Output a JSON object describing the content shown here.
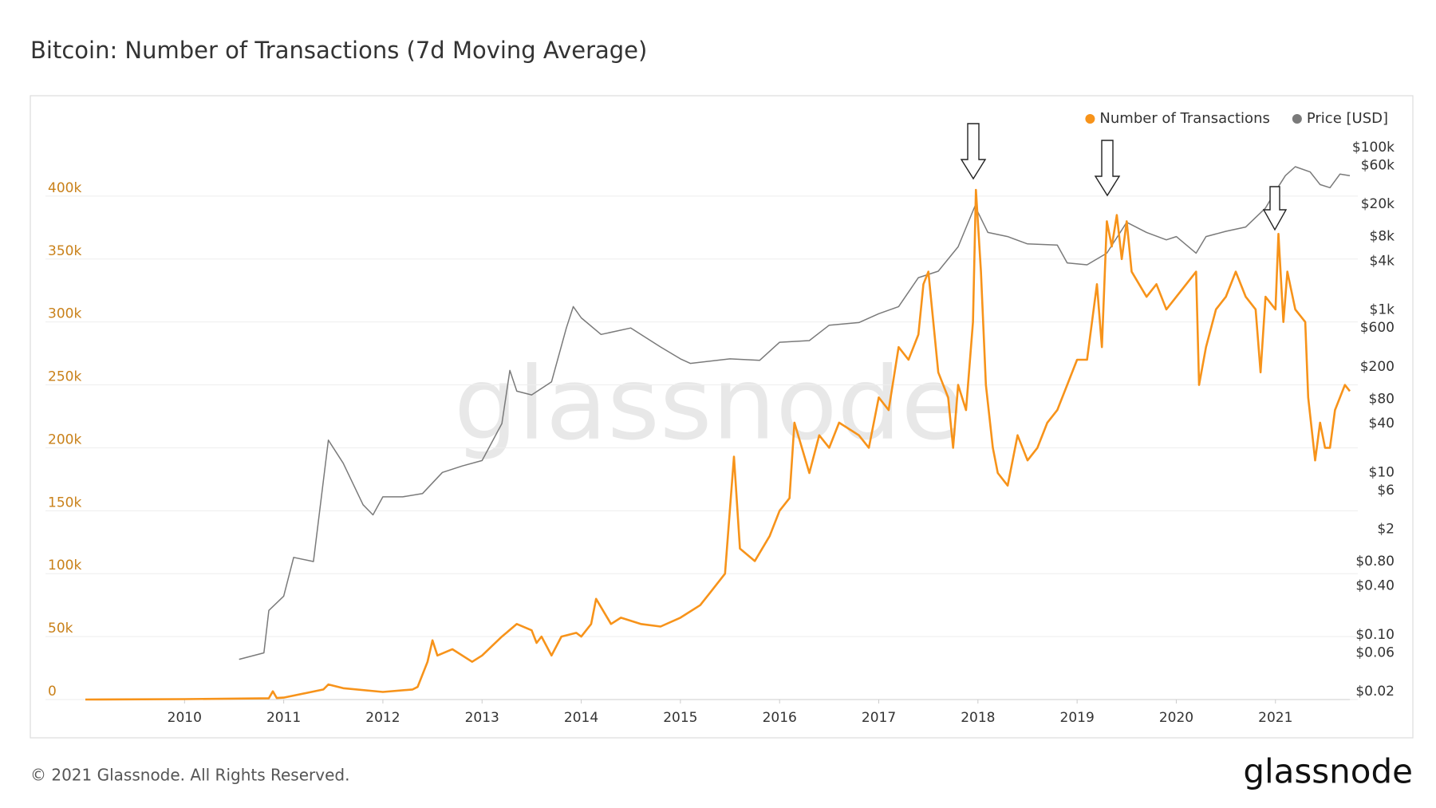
{
  "chart_data": {
    "type": "line",
    "title": "Bitcoin: Number of Transactions (7d Moving Average)",
    "watermark": "glassnode",
    "xlim": [
      2009.0,
      2021.75
    ],
    "xticks": [
      2010,
      2011,
      2012,
      2013,
      2014,
      2015,
      2016,
      2017,
      2018,
      2019,
      2020,
      2021
    ],
    "ylim": [
      0,
      450000
    ],
    "yticks": [
      0,
      {
        "value": 50000,
        "label": "50k"
      },
      {
        "value": 100000,
        "label": "100k"
      },
      {
        "value": 150000,
        "label": "150k"
      },
      {
        "value": 200000,
        "label": "200k"
      },
      {
        "value": 250000,
        "label": "250k"
      },
      {
        "value": 300000,
        "label": "300k"
      },
      {
        "value": 350000,
        "label": "350k"
      },
      {
        "value": 400000,
        "label": "400k"
      }
    ],
    "y2lim": [
      0.016,
      150000
    ],
    "y2scale": "log",
    "y2ticks": [
      {
        "value": 0.02,
        "label": "$0.02"
      },
      {
        "value": 0.06,
        "label": "$0.06"
      },
      {
        "value": 0.1,
        "label": "$0.10"
      },
      {
        "value": 0.4,
        "label": "$0.40"
      },
      {
        "value": 0.8,
        "label": "$0.80"
      },
      {
        "value": 2,
        "label": "$2"
      },
      {
        "value": 6,
        "label": "$6"
      },
      {
        "value": 10,
        "label": "$10"
      },
      {
        "value": 40,
        "label": "$40"
      },
      {
        "value": 80,
        "label": "$80"
      },
      {
        "value": 200,
        "label": "$200"
      },
      {
        "value": 600,
        "label": "$600"
      },
      {
        "value": 1000,
        "label": "$1k"
      },
      {
        "value": 4000,
        "label": "$4k"
      },
      {
        "value": 8000,
        "label": "$8k"
      },
      {
        "value": 20000,
        "label": "$20k"
      },
      {
        "value": 60000,
        "label": "$60k"
      },
      {
        "value": 100000,
        "label": "$100k"
      }
    ],
    "grid": true,
    "legend": "top-right",
    "series": [
      {
        "name": "Price [USD]",
        "color": "#7a7a7a",
        "axis": "y2",
        "x": [
          2010.55,
          2010.8,
          2010.85,
          2011.0,
          2011.1,
          2011.3,
          2011.45,
          2011.6,
          2011.8,
          2011.9,
          2012.0,
          2012.2,
          2012.4,
          2012.6,
          2012.8,
          2013.0,
          2013.2,
          2013.28,
          2013.35,
          2013.5,
          2013.7,
          2013.85,
          2013.92,
          2014.0,
          2014.2,
          2014.5,
          2014.8,
          2015.0,
          2015.1,
          2015.5,
          2015.8,
          2016.0,
          2016.3,
          2016.5,
          2016.8,
          2017.0,
          2017.2,
          2017.4,
          2017.6,
          2017.8,
          2017.97,
          2018.1,
          2018.3,
          2018.5,
          2018.8,
          2018.9,
          2019.1,
          2019.3,
          2019.5,
          2019.7,
          2019.9,
          2020.0,
          2020.2,
          2020.3,
          2020.5,
          2020.7,
          2020.9,
          2021.0,
          2021.1,
          2021.2,
          2021.35,
          2021.45,
          2021.55,
          2021.65,
          2021.75
        ],
        "values": [
          0.05,
          0.06,
          0.2,
          0.3,
          0.9,
          0.8,
          25,
          13,
          4,
          3,
          5,
          5,
          5.5,
          10,
          12,
          14,
          40,
          180,
          100,
          90,
          130,
          600,
          1100,
          800,
          500,
          600,
          350,
          250,
          220,
          250,
          240,
          400,
          420,
          650,
          700,
          900,
          1100,
          2500,
          3000,
          6000,
          19000,
          9000,
          8000,
          6500,
          6300,
          3800,
          3600,
          5000,
          12000,
          9000,
          7300,
          8000,
          5000,
          8000,
          9300,
          10500,
          18000,
          29000,
          45000,
          58000,
          50000,
          35000,
          32000,
          47000,
          45000
        ]
      },
      {
        "name": "Number of Transactions",
        "color": "#f7931a",
        "x": [
          2009.0,
          2010.0,
          2010.85,
          2010.89,
          2010.93,
          2011.0,
          2011.4,
          2011.45,
          2011.6,
          2012.0,
          2012.3,
          2012.35,
          2012.45,
          2012.5,
          2012.55,
          2012.7,
          2012.9,
          2013.0,
          2013.2,
          2013.35,
          2013.5,
          2013.55,
          2013.6,
          2013.7,
          2013.8,
          2013.95,
          2014.0,
          2014.1,
          2014.15,
          2014.3,
          2014.4,
          2014.6,
          2014.8,
          2015.0,
          2015.2,
          2015.3,
          2015.45,
          2015.54,
          2015.6,
          2015.75,
          2015.9,
          2016.0,
          2016.1,
          2016.15,
          2016.3,
          2016.4,
          2016.5,
          2016.6,
          2016.8,
          2016.9,
          2017.0,
          2017.1,
          2017.2,
          2017.3,
          2017.4,
          2017.45,
          2017.5,
          2017.55,
          2017.6,
          2017.7,
          2017.75,
          2017.8,
          2017.88,
          2017.95,
          2017.98,
          2018.03,
          2018.08,
          2018.15,
          2018.2,
          2018.3,
          2018.4,
          2018.5,
          2018.6,
          2018.7,
          2018.8,
          2018.9,
          2019.0,
          2019.1,
          2019.2,
          2019.25,
          2019.3,
          2019.35,
          2019.4,
          2019.45,
          2019.5,
          2019.55,
          2019.7,
          2019.8,
          2019.9,
          2020.0,
          2020.1,
          2020.2,
          2020.23,
          2020.3,
          2020.4,
          2020.5,
          2020.6,
          2020.7,
          2020.8,
          2020.85,
          2020.9,
          2021.0,
          2021.03,
          2021.08,
          2021.12,
          2021.2,
          2021.3,
          2021.33,
          2021.4,
          2021.45,
          2021.5,
          2021.55,
          2021.6,
          2021.7,
          2021.75
        ],
        "values": [
          0,
          300,
          1000,
          6500,
          1200,
          1500,
          8000,
          12000,
          9000,
          6000,
          8000,
          10000,
          30000,
          47000,
          35000,
          40000,
          30000,
          35000,
          50000,
          60000,
          55000,
          45000,
          50000,
          35000,
          50000,
          53000,
          50000,
          60000,
          80000,
          60000,
          65000,
          60000,
          58000,
          65000,
          75000,
          85000,
          100000,
          193000,
          120000,
          110000,
          130000,
          150000,
          160000,
          220000,
          180000,
          210000,
          200000,
          220000,
          210000,
          200000,
          240000,
          230000,
          280000,
          270000,
          290000,
          330000,
          340000,
          300000,
          260000,
          240000,
          200000,
          250000,
          230000,
          300000,
          405000,
          340000,
          250000,
          200000,
          180000,
          170000,
          210000,
          190000,
          200000,
          220000,
          230000,
          250000,
          270000,
          270000,
          330000,
          280000,
          380000,
          360000,
          385000,
          350000,
          380000,
          340000,
          320000,
          330000,
          310000,
          320000,
          330000,
          340000,
          250000,
          280000,
          310000,
          320000,
          340000,
          320000,
          310000,
          260000,
          320000,
          310000,
          370000,
          300000,
          340000,
          310000,
          300000,
          240000,
          190000,
          220000,
          200000,
          200000,
          230000,
          250000,
          245000
        ]
      }
    ]
  },
  "footer": {
    "copyright": "© 2021 Glassnode. All Rights Reserved.",
    "logo": "glassnode"
  }
}
